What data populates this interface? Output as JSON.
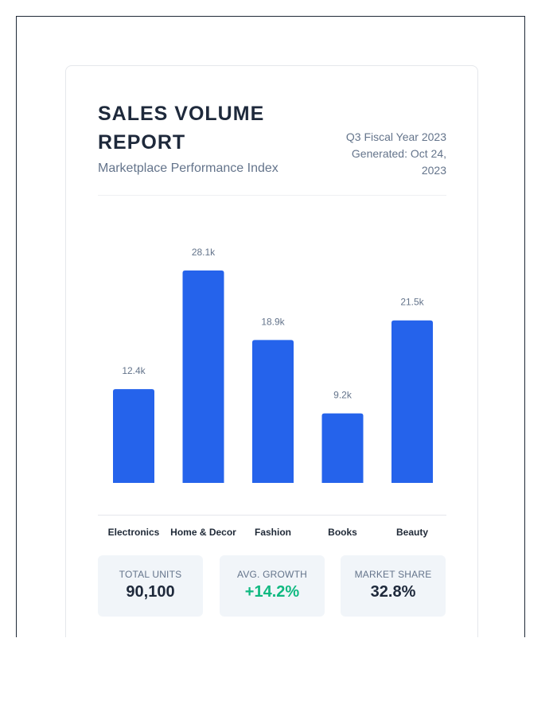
{
  "report": {
    "title": "SALES VOLUME REPORT",
    "subtitle": "Marketplace Performance Index",
    "period": "Q3 Fiscal Year 2023",
    "generated": "Generated: Oct 24, 2023"
  },
  "colors": {
    "bar": "#2563eb",
    "title": "#1e293b",
    "muted": "#64748b",
    "positive": "#10b981",
    "stat_bg": "#f1f5f9"
  },
  "chart_data": {
    "type": "bar",
    "title": "",
    "xlabel": "",
    "ylabel": "",
    "categories": [
      "Electronics",
      "Home & Decor",
      "Fashion",
      "Books",
      "Beauty"
    ],
    "values": [
      12.4,
      28.1,
      18.9,
      9.2,
      21.5
    ],
    "data_labels": [
      "12.4k",
      "28.1k",
      "18.9k",
      "9.2k",
      "21.5k"
    ],
    "unit": "k",
    "ylim": [
      0,
      28.1
    ],
    "grid": false,
    "legend": "none"
  },
  "stats": [
    {
      "label": "TOTAL UNITS",
      "value": "90,100",
      "tone": "neutral"
    },
    {
      "label": "AVG. GROWTH",
      "value": "+14.2%",
      "tone": "positive"
    },
    {
      "label": "MARKET SHARE",
      "value": "32.8%",
      "tone": "neutral"
    }
  ]
}
